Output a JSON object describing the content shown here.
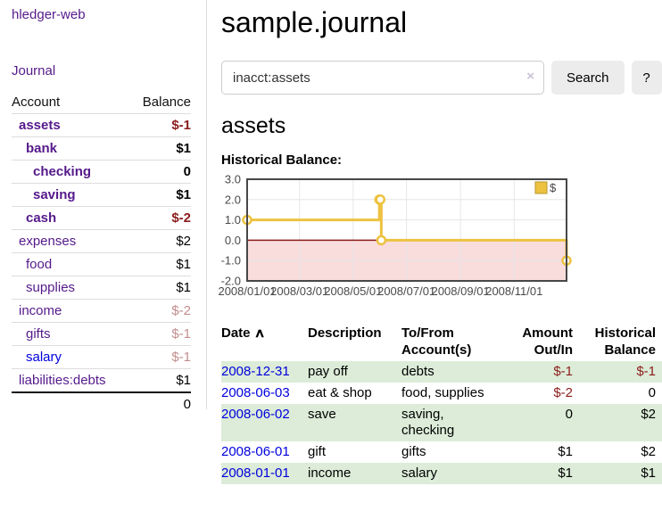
{
  "app": {
    "brand": "hledger-web",
    "nav_journal": "Journal"
  },
  "colors": {
    "link_purple": "#551a8b",
    "link_blue": "#0000dd",
    "negative_strong": "#8b1c1c",
    "negative_soft": "#c38d8d",
    "row_shade_green": "#dcecd8",
    "series_gold": "#edc240"
  },
  "sidebar": {
    "table": {
      "headers": {
        "account": "Account",
        "balance": "Balance"
      },
      "rows": [
        {
          "name": "assets",
          "indent": 1,
          "balance": "$-1",
          "bold": true,
          "negative": "strong"
        },
        {
          "name": "bank",
          "indent": 2,
          "balance": "$1",
          "bold": true
        },
        {
          "name": "checking",
          "indent": 3,
          "balance": "0",
          "bold": true
        },
        {
          "name": "saving",
          "indent": 3,
          "balance": "$1",
          "bold": true
        },
        {
          "name": "cash",
          "indent": 2,
          "balance": "$-2",
          "bold": true,
          "negative": "strong"
        },
        {
          "name": "expenses",
          "indent": 1,
          "balance": "$2"
        },
        {
          "name": "food",
          "indent": 2,
          "balance": "$1"
        },
        {
          "name": "supplies",
          "indent": 2,
          "balance": "$1"
        },
        {
          "name": "income",
          "indent": 1,
          "balance": "$-2",
          "negative": "soft"
        },
        {
          "name": "gifts",
          "indent": 2,
          "balance": "$-1",
          "negative": "soft"
        },
        {
          "name": "salary",
          "indent": 2,
          "balance": "$-1",
          "negative": "soft",
          "blue": true
        },
        {
          "name": "liabilities:debts",
          "indent": 1,
          "balance": "$1"
        }
      ],
      "total": "0"
    }
  },
  "header": {
    "title": "sample.journal"
  },
  "search": {
    "value": "inacct:assets",
    "clear_icon": "×",
    "search_label": "Search",
    "help_label": "?"
  },
  "account_page": {
    "title": "assets",
    "chart_label": "Historical Balance:"
  },
  "chart_data": {
    "type": "line",
    "title": "Historical Balance:",
    "step": true,
    "ylim": [
      -2,
      3
    ],
    "y_ticks": [
      {
        "v": 3,
        "label": "3.0"
      },
      {
        "v": 2,
        "label": "2.0"
      },
      {
        "v": 1,
        "label": "1.0"
      },
      {
        "v": 0,
        "label": "0.0"
      },
      {
        "v": -1,
        "label": "-1.0"
      },
      {
        "v": -2,
        "label": "-2.0"
      }
    ],
    "x_ticks": [
      {
        "label": "2008/01/01",
        "f": 0.0
      },
      {
        "label": "2008/03/01",
        "f": 0.164
      },
      {
        "label": "2008/05/01",
        "f": 0.332
      },
      {
        "label": "2008/07/01",
        "f": 0.499
      },
      {
        "label": "2008/09/01",
        "f": 0.668
      },
      {
        "label": "2008/11/01",
        "f": 0.836
      }
    ],
    "series": [
      {
        "name": "$",
        "color": "#edc240",
        "points": [
          {
            "date": "2008-01-01",
            "f": 0.0,
            "y": 1
          },
          {
            "date": "2008-06-01",
            "f": 0.414,
            "y": 2
          },
          {
            "date": "2008-06-02",
            "f": 0.417,
            "y": 2
          },
          {
            "date": "2008-06-03",
            "f": 0.42,
            "y": 0
          },
          {
            "date": "2008-12-31",
            "f": 1.0,
            "y": -1
          }
        ]
      }
    ],
    "legend": {
      "label": "$",
      "position": "top-right"
    },
    "grid_on": true,
    "grid_color": "#e6e6e6",
    "border_color": "#474747",
    "tick_color": "#4a4a4a",
    "negative_region_color": "#f9dcdc",
    "zero_line_color": "#8b1a1a"
  },
  "register": {
    "headers": {
      "date": "Date",
      "sort_icon": "∧",
      "description": "Description",
      "accounts": "To/From Account(s)",
      "amount": "Amount Out/In",
      "balance": "Historical Balance"
    },
    "rows": [
      {
        "date": "2008-12-31",
        "description": "pay off",
        "accounts": "debts",
        "amount": "$-1",
        "balance": "$-1",
        "amount_negative": true,
        "balance_negative": true,
        "shaded": true
      },
      {
        "date": "2008-06-03",
        "description": "eat & shop",
        "accounts": "food, supplies",
        "amount": "$-2",
        "balance": "0",
        "amount_negative": true,
        "balance_negative": false,
        "shaded": false
      },
      {
        "date": "2008-06-02",
        "description": "save",
        "accounts": "saving, checking",
        "amount": "0",
        "balance": "$2",
        "amount_negative": false,
        "balance_negative": false,
        "shaded": true
      },
      {
        "date": "2008-06-01",
        "description": "gift",
        "accounts": "gifts",
        "amount": "$1",
        "balance": "$2",
        "amount_negative": false,
        "balance_negative": false,
        "shaded": false
      },
      {
        "date": "2008-01-01",
        "description": "income",
        "accounts": "salary",
        "amount": "$1",
        "balance": "$1",
        "amount_negative": false,
        "balance_negative": false,
        "shaded": true
      }
    ]
  }
}
